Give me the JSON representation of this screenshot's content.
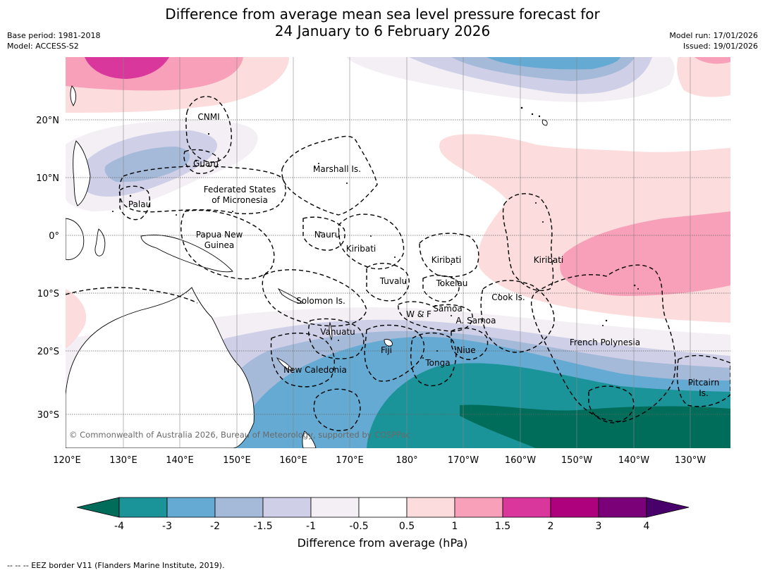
{
  "title_line1": "Difference from average mean sea level pressure forecast for",
  "title_line2": "24 January to 6 February 2026",
  "meta": {
    "base_period": "Base period: 1981-2018",
    "model": "Model: ACCESS-S2",
    "model_run": "Model run: 17/01/2026",
    "issued": "Issued: 19/01/2026"
  },
  "lon_labels": [
    "120°E",
    "130°E",
    "140°E",
    "150°E",
    "160°E",
    "170°E",
    "180°",
    "170°W",
    "160°W",
    "150°W",
    "140°W",
    "130°W"
  ],
  "lat_labels": [
    "20°N",
    "10°N",
    "0°",
    "10°S",
    "20°S",
    "30°S"
  ],
  "places": [
    "CNMI",
    "Guam",
    "Marshall Is.",
    "Palau",
    "Federated States",
    "of Micronesia",
    "Papua New",
    "Guinea",
    "Nauru",
    "Kiribati",
    "Kiribati",
    "Kiribati",
    "Tuvalu",
    "Tokelau",
    "Solomon Is.",
    "Samoa",
    "W & F",
    "A. Samoa",
    "Cook Is.",
    "Vanuatu",
    "Fiji",
    "Niue",
    "Tonga",
    "French Polynesia",
    "New Caledonia",
    "Pitcairn",
    "Is."
  ],
  "copyright": "© Commonwealth of Australia 2026, Bureau of Meteorology, supported by COSPPac",
  "colorbar": {
    "ticks": [
      "-4",
      "-3",
      "-2",
      "-1.5",
      "-1",
      "-0.5",
      "0.5",
      "1",
      "1.5",
      "2",
      "3",
      "4"
    ],
    "colors": [
      "#006d5b",
      "#1a9399",
      "#64aad2",
      "#a5b9d8",
      "#cfd0e8",
      "#f3eff5",
      "#ffffff",
      "#fcdcdc",
      "#f8a0b9",
      "#d9379b",
      "#ae017e",
      "#7a0177",
      "#49006a"
    ],
    "label": "Difference from average (hPa)"
  },
  "footer": "--  --  -- EEZ border V11 (Flanders Marine Institute, 2019)."
}
